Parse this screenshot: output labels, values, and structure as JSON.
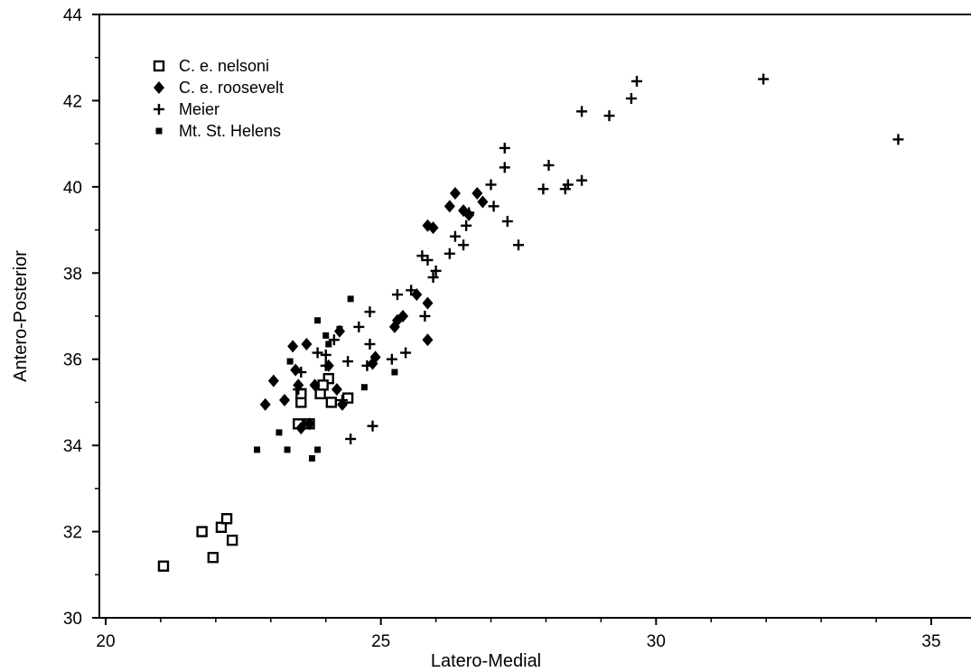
{
  "chart_data": {
    "type": "scatter",
    "title": "",
    "xlabel": "Latero-Medial",
    "ylabel": "Antero-Posterior",
    "xlim": [
      20,
      35.8
    ],
    "ylim": [
      30,
      44
    ],
    "x_ticks": [
      20,
      25,
      30,
      35
    ],
    "x_tick_labels": [
      "20",
      "25",
      "30",
      "35"
    ],
    "y_ticks": [
      30,
      32,
      34,
      36,
      38,
      40,
      42,
      44
    ],
    "y_tick_labels": [
      "30",
      "32",
      "34",
      "36",
      "38",
      "40",
      "42",
      "44"
    ],
    "grid": false,
    "legend_position": "top-left",
    "series": [
      {
        "name": "C. e. nelsoni",
        "marker": "open-square",
        "points": [
          [
            21.05,
            31.2
          ],
          [
            21.75,
            32.0
          ],
          [
            21.95,
            31.4
          ],
          [
            22.1,
            32.1
          ],
          [
            22.2,
            32.3
          ],
          [
            22.3,
            31.8
          ],
          [
            23.5,
            34.5
          ],
          [
            23.7,
            34.5
          ],
          [
            23.9,
            35.2
          ],
          [
            23.55,
            35.0
          ],
          [
            23.55,
            35.2
          ],
          [
            24.05,
            35.55
          ],
          [
            24.1,
            35.0
          ],
          [
            24.4,
            35.1
          ],
          [
            23.95,
            35.4
          ]
        ]
      },
      {
        "name": "C. e. roosevelt",
        "marker": "filled-diamond",
        "points": [
          [
            22.9,
            34.95
          ],
          [
            23.05,
            35.5
          ],
          [
            23.25,
            35.05
          ],
          [
            23.4,
            36.3
          ],
          [
            23.45,
            35.75
          ],
          [
            23.65,
            36.35
          ],
          [
            23.5,
            35.4
          ],
          [
            23.7,
            34.5
          ],
          [
            23.55,
            34.4
          ],
          [
            23.8,
            35.4
          ],
          [
            24.05,
            35.85
          ],
          [
            24.2,
            35.3
          ],
          [
            24.3,
            34.95
          ],
          [
            24.25,
            36.65
          ],
          [
            24.85,
            35.9
          ],
          [
            24.9,
            36.05
          ],
          [
            25.25,
            36.75
          ],
          [
            25.3,
            36.9
          ],
          [
            25.4,
            37.0
          ],
          [
            25.65,
            37.5
          ],
          [
            25.85,
            37.3
          ],
          [
            25.85,
            36.45
          ],
          [
            25.85,
            39.1
          ],
          [
            25.95,
            39.05
          ],
          [
            26.25,
            39.55
          ],
          [
            26.35,
            39.85
          ],
          [
            26.5,
            39.45
          ],
          [
            26.6,
            39.35
          ],
          [
            26.75,
            39.85
          ],
          [
            26.85,
            39.65
          ]
        ]
      },
      {
        "name": "Meier",
        "marker": "plus",
        "points": [
          [
            23.5,
            35.3
          ],
          [
            23.55,
            35.7
          ],
          [
            23.85,
            36.15
          ],
          [
            24.0,
            36.1
          ],
          [
            24.15,
            36.45
          ],
          [
            24.0,
            35.85
          ],
          [
            24.3,
            35.05
          ],
          [
            24.4,
            35.95
          ],
          [
            24.45,
            34.15
          ],
          [
            24.6,
            36.75
          ],
          [
            24.75,
            35.85
          ],
          [
            24.8,
            36.35
          ],
          [
            24.8,
            37.1
          ],
          [
            24.85,
            34.45
          ],
          [
            25.2,
            36.0
          ],
          [
            25.3,
            37.5
          ],
          [
            25.45,
            36.15
          ],
          [
            25.55,
            37.6
          ],
          [
            25.75,
            38.4
          ],
          [
            25.8,
            37.0
          ],
          [
            25.85,
            38.3
          ],
          [
            25.95,
            37.9
          ],
          [
            26.0,
            38.05
          ],
          [
            26.25,
            38.45
          ],
          [
            26.35,
            38.85
          ],
          [
            26.5,
            38.65
          ],
          [
            26.55,
            39.1
          ],
          [
            26.6,
            39.4
          ],
          [
            27.0,
            40.05
          ],
          [
            27.05,
            39.55
          ],
          [
            27.25,
            40.9
          ],
          [
            27.25,
            40.45
          ],
          [
            27.3,
            39.2
          ],
          [
            27.5,
            38.65
          ],
          [
            27.95,
            39.95
          ],
          [
            28.05,
            40.5
          ],
          [
            28.35,
            39.95
          ],
          [
            28.4,
            40.05
          ],
          [
            28.65,
            41.75
          ],
          [
            28.65,
            40.15
          ],
          [
            29.15,
            41.65
          ],
          [
            29.55,
            42.05
          ],
          [
            29.65,
            42.45
          ],
          [
            31.95,
            42.5
          ],
          [
            34.4,
            41.1
          ]
        ]
      },
      {
        "name": "Mt. St. Helens",
        "marker": "small-filled-square",
        "points": [
          [
            22.75,
            33.9
          ],
          [
            23.15,
            34.3
          ],
          [
            23.3,
            33.9
          ],
          [
            23.35,
            35.95
          ],
          [
            23.75,
            33.7
          ],
          [
            23.85,
            36.9
          ],
          [
            23.85,
            33.9
          ],
          [
            24.0,
            36.55
          ],
          [
            24.05,
            36.35
          ],
          [
            24.25,
            36.7
          ],
          [
            24.45,
            37.4
          ],
          [
            24.7,
            35.35
          ],
          [
            25.25,
            35.7
          ]
        ]
      }
    ]
  }
}
